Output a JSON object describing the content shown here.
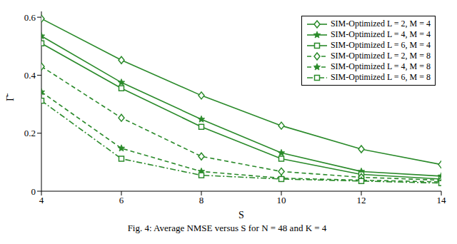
{
  "chart_data": {
    "type": "line",
    "caption": "Fig. 4: Average NMSE versus S for N = 48 and K = 4",
    "x_label": "S",
    "y_label": "Γ̄",
    "x": [
      4,
      6,
      8,
      10,
      12,
      14
    ],
    "xlim": [
      4,
      14
    ],
    "xticks": [
      4,
      6,
      8,
      10,
      12,
      14
    ],
    "ylim": [
      0,
      0.62
    ],
    "yticks": [
      0,
      0.2,
      0.4,
      0.6
    ],
    "grid": false,
    "legend": "upper right",
    "series": [
      {
        "name": "SIM-Optimized L = 2, M = 4",
        "color": "#2a8a2a",
        "marker": "diamond",
        "line_style": "solid",
        "values": [
          0.595,
          0.452,
          0.33,
          0.226,
          0.145,
          0.092
        ]
      },
      {
        "name": "SIM-Optimized L = 4, M = 4",
        "color": "#2a8a2a",
        "marker": "star",
        "line_style": "solid",
        "values": [
          0.535,
          0.375,
          0.248,
          0.132,
          0.068,
          0.052
        ]
      },
      {
        "name": "SIM-Optimized L = 6, M = 4",
        "color": "#2a8a2a",
        "marker": "square",
        "line_style": "solid",
        "values": [
          0.51,
          0.355,
          0.222,
          0.112,
          0.058,
          0.042
        ]
      },
      {
        "name": "SIM-Optimized L = 2, M = 8",
        "color": "#2a8a2a",
        "marker": "diamond",
        "line_style": "dashed",
        "values": [
          0.43,
          0.253,
          0.12,
          0.068,
          0.048,
          0.038
        ]
      },
      {
        "name": "SIM-Optimized L = 4, M = 8",
        "color": "#2a8a2a",
        "marker": "star",
        "line_style": "dashed",
        "values": [
          0.342,
          0.148,
          0.068,
          0.045,
          0.038,
          0.032
        ]
      },
      {
        "name": "SIM-Optimized L = 6, M = 8",
        "color": "#2a8a2a",
        "marker": "square",
        "line_style": "dashdot",
        "values": [
          0.312,
          0.112,
          0.055,
          0.042,
          0.035,
          0.028
        ]
      }
    ]
  }
}
